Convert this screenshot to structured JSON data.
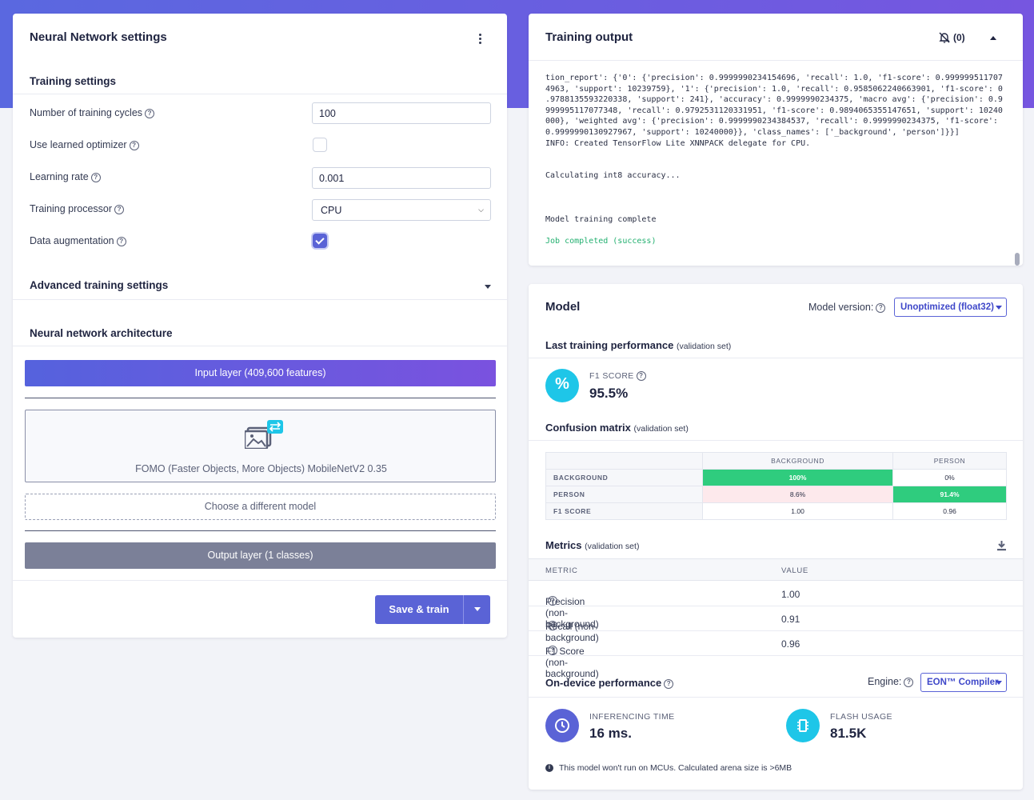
{
  "nn_settings": {
    "title": "Neural Network settings",
    "training_settings_title": "Training settings",
    "fields": {
      "cycles": {
        "label": "Number of training cycles",
        "value": "100"
      },
      "optimizer": {
        "label": "Use learned optimizer",
        "checked": false
      },
      "lr": {
        "label": "Learning rate",
        "value": "0.001"
      },
      "processor": {
        "label": "Training processor",
        "value": "CPU"
      },
      "augmentation": {
        "label": "Data augmentation",
        "checked": true
      }
    },
    "advanced_title": "Advanced training settings",
    "architecture_title": "Neural network architecture",
    "input_layer": "Input layer (409,600 features)",
    "model_name": "FOMO (Faster Objects, More Objects) MobileNetV2 0.35",
    "choose_model": "Choose a different model",
    "output_layer": "Output layer (1 classes)",
    "save_train": "Save & train"
  },
  "training_output": {
    "title": "Training output",
    "notifications": "(0)",
    "log_lines": [
      "tion_report': {'0': {'precision': 0.9999990234154696, 'recall': 1.0, 'f1-score': 0.999999511707",
      "4963, 'support': 10239759}, '1': {'precision': 1.0, 'recall': 0.9585062240663901, 'f1-score': 0",
      ".9788135593220338, 'support': 241}, 'accuracy': 0.9999990234375, 'macro avg': {'precision': 0.9",
      "999995117077348, 'recall': 0.9792531120331951, 'f1-score': 0.9894065355147651, 'support': 10240",
      "000}, 'weighted avg': {'precision': 0.9999990234384537, 'recall': 0.9999990234375, 'f1-score':",
      "0.9999990130927967, 'support': 10240000}}, 'class_names': ['_background', 'person']}}]",
      "INFO: Created TensorFlow Lite XNNPACK delegate for CPU."
    ],
    "calc_line": "Calculating int8 accuracy...",
    "complete_line": "Model training complete",
    "success_line": "Job completed (success)"
  },
  "model": {
    "title": "Model",
    "version_label": "Model version:",
    "version_value": "Unoptimized (float32)",
    "last_perf_title": "Last training performance",
    "validation_set": "(validation set)",
    "f1_label": "F1 SCORE",
    "f1_value": "95.5%",
    "confusion_title": "Confusion matrix",
    "confusion": {
      "col_headers": [
        "BACKGROUND",
        "PERSON"
      ],
      "rows": [
        {
          "label": "BACKGROUND",
          "cells": [
            "100%",
            "0%"
          ]
        },
        {
          "label": "PERSON",
          "cells": [
            "8.6%",
            "91.4%"
          ]
        },
        {
          "label": "F1 SCORE",
          "cells": [
            "1.00",
            "0.96"
          ]
        }
      ]
    },
    "metrics_title": "Metrics",
    "metrics_headers": [
      "METRIC",
      "VALUE"
    ],
    "metrics": [
      {
        "name": "Precision (non-background)",
        "value": "1.00"
      },
      {
        "name": "Recall (non-background)",
        "value": "0.91"
      },
      {
        "name": "F1 Score (non-background)",
        "value": "0.96"
      }
    ],
    "ondevice_title": "On-device performance",
    "engine_label": "Engine:",
    "engine_value": "EON™ Compiler",
    "inferencing_label": "INFERENCING TIME",
    "inferencing_value": "16 ms.",
    "flash_label": "FLASH USAGE",
    "flash_value": "81.5K",
    "warning": "This model won't run on MCUs. Calculated arena size is >6MB"
  },
  "colors": {
    "accent": "#5a63d6",
    "input_layer_gradient": [
      "#5562dd",
      "#7a52df"
    ],
    "output_layer": "#7b8098",
    "success": "#23b070",
    "cm_good": "#2fcc7e",
    "cm_bad": "#fde9ec",
    "f1_circle": "#1ec6e8"
  }
}
